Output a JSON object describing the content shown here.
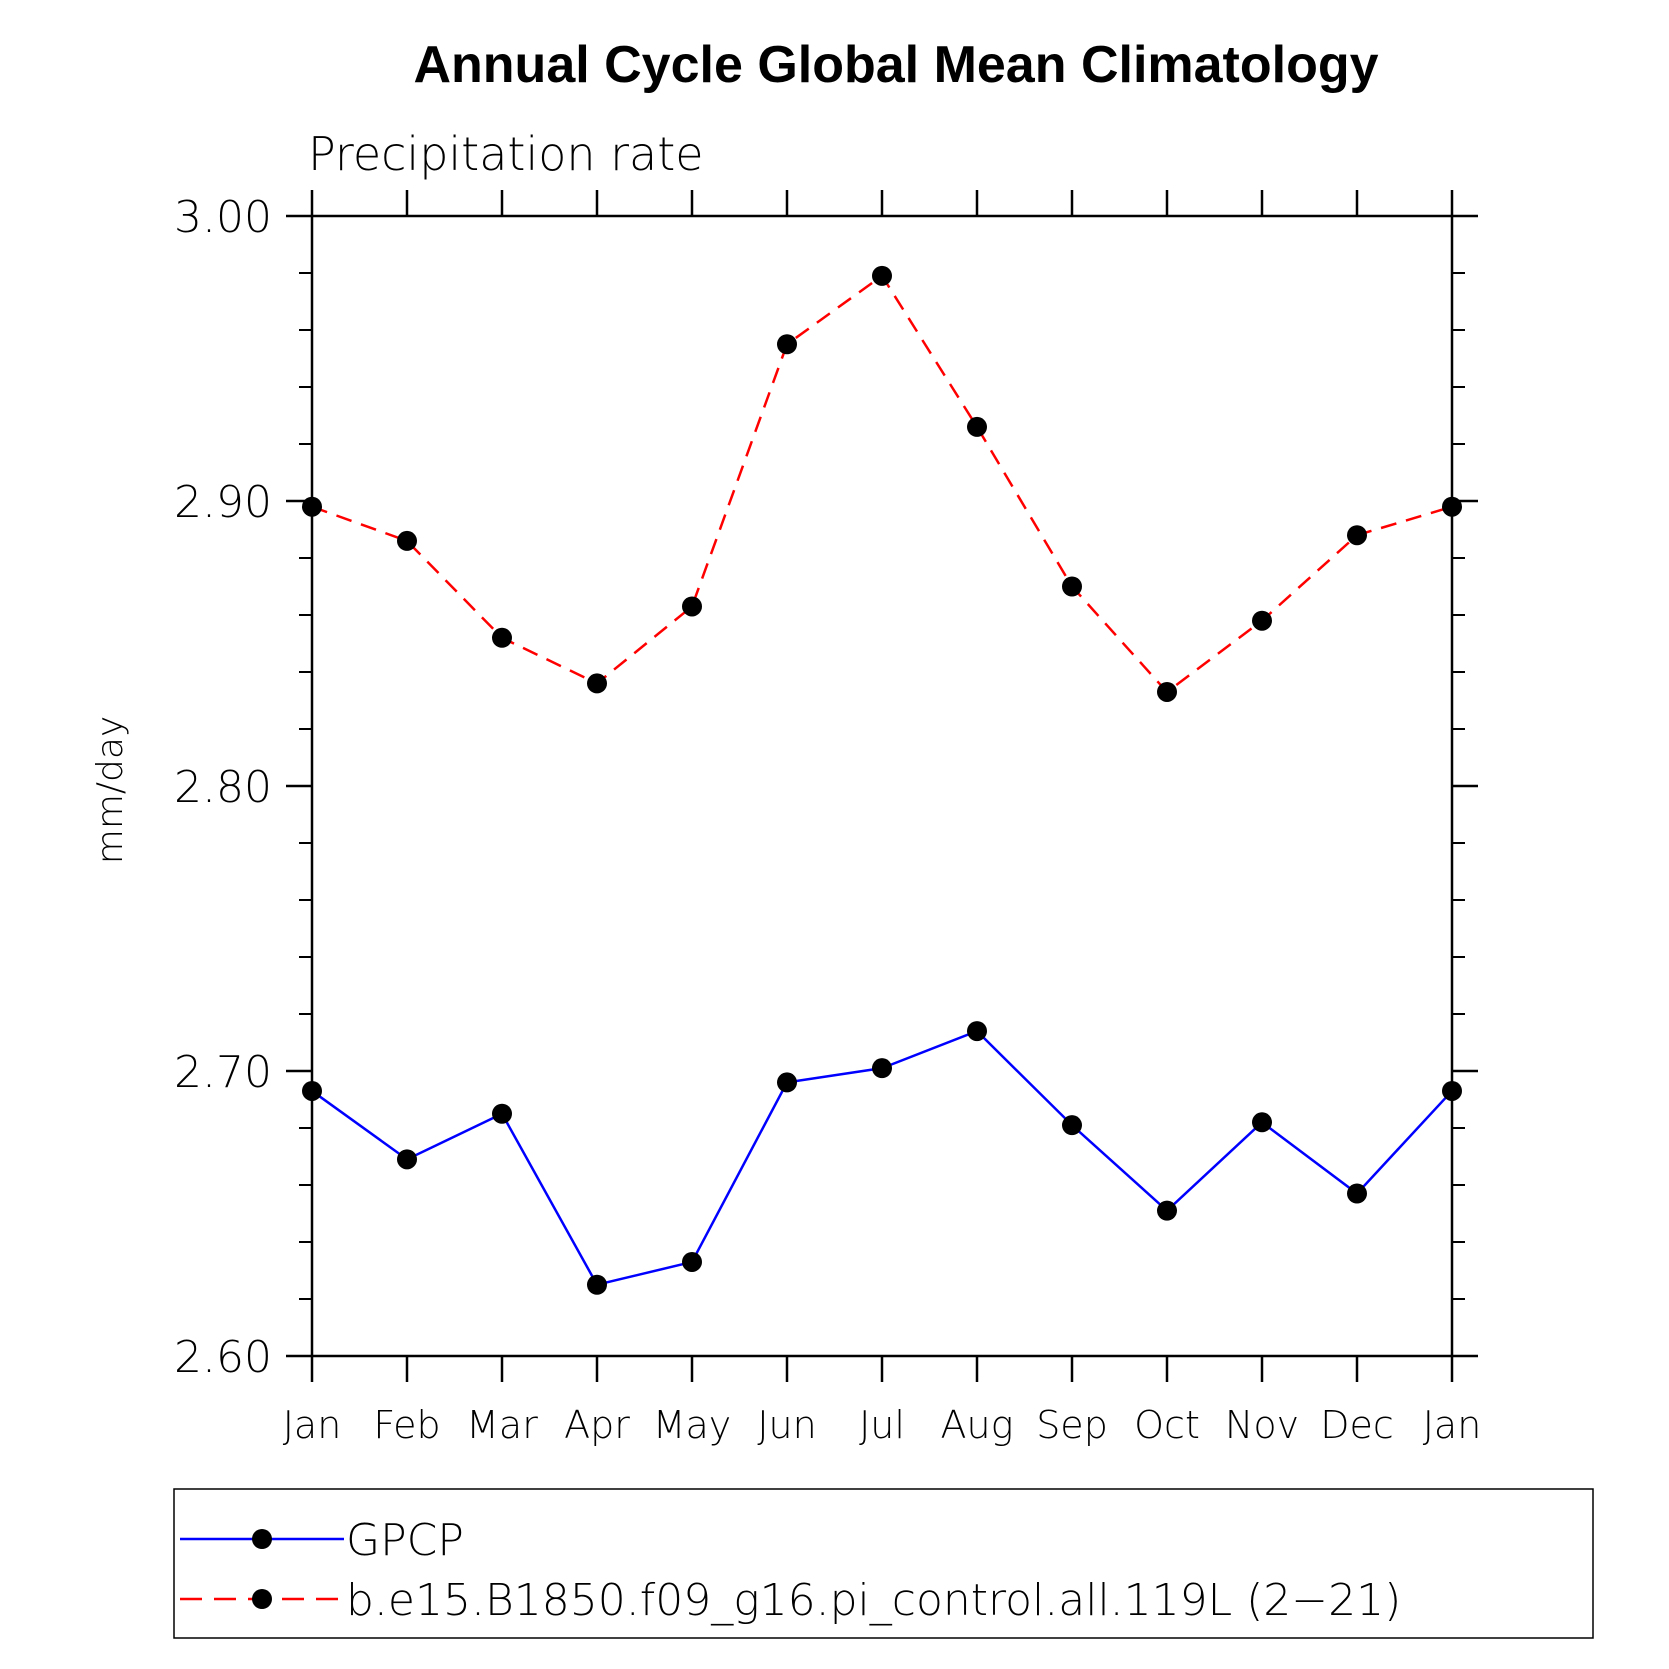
{
  "chart_data": {
    "type": "line",
    "title": "Annual Cycle Global Mean Climatology",
    "subtitle": "Precipitation rate",
    "ylabel": "mm/day",
    "xlabel": "",
    "ylim": [
      2.6,
      3.0
    ],
    "yticks": [
      "3.00",
      "2.90",
      "2.80",
      "2.70",
      "2.60"
    ],
    "ytick_values": [
      3.0,
      2.9,
      2.8,
      2.7,
      2.6
    ],
    "y_minor_step": 0.02,
    "categories": [
      "Jan",
      "Feb",
      "Mar",
      "Apr",
      "May",
      "Jun",
      "Jul",
      "Aug",
      "Sep",
      "Oct",
      "Nov",
      "Dec",
      "Jan"
    ],
    "legend_position": "bottom",
    "series": [
      {
        "name": "GPCP",
        "color": "#0000ff",
        "dash": "solid",
        "marker": "filled-circle",
        "values": [
          2.693,
          2.669,
          2.685,
          2.625,
          2.633,
          2.696,
          2.701,
          2.714,
          2.681,
          2.651,
          2.682,
          2.657,
          2.693
        ]
      },
      {
        "name": "b.e15.B1850.f09_g16.pi_control.all.119L (2−21)",
        "color": "#ff0000",
        "dash": "dashed",
        "marker": "filled-circle",
        "values": [
          2.898,
          2.886,
          2.852,
          2.836,
          2.863,
          2.955,
          2.979,
          2.926,
          2.87,
          2.833,
          2.858,
          2.888,
          2.898
        ]
      }
    ]
  }
}
